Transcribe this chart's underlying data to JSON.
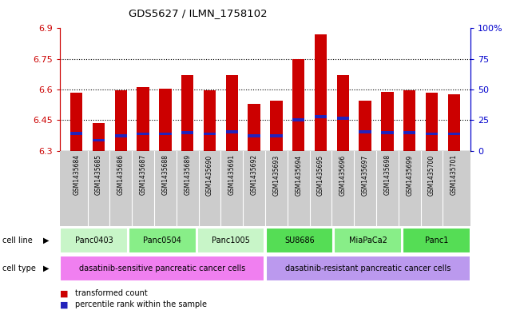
{
  "title": "GDS5627 / ILMN_1758102",
  "samples": [
    "GSM1435684",
    "GSM1435685",
    "GSM1435686",
    "GSM1435687",
    "GSM1435688",
    "GSM1435689",
    "GSM1435690",
    "GSM1435691",
    "GSM1435692",
    "GSM1435693",
    "GSM1435694",
    "GSM1435695",
    "GSM1435696",
    "GSM1435697",
    "GSM1435698",
    "GSM1435699",
    "GSM1435700",
    "GSM1435701"
  ],
  "transformed_counts": [
    6.585,
    6.435,
    6.595,
    6.61,
    6.605,
    6.67,
    6.595,
    6.67,
    6.53,
    6.545,
    6.75,
    6.87,
    6.67,
    6.545,
    6.59,
    6.595,
    6.585,
    6.575
  ],
  "percentile_positions": [
    6.384,
    6.352,
    6.373,
    6.383,
    6.383,
    6.388,
    6.383,
    6.393,
    6.373,
    6.373,
    6.452,
    6.468,
    6.458,
    6.393,
    6.388,
    6.388,
    6.383,
    6.383
  ],
  "y_min": 6.3,
  "y_max": 6.9,
  "y_ticks": [
    6.3,
    6.45,
    6.6,
    6.75,
    6.9
  ],
  "y_tick_labels": [
    "6.3",
    "6.45",
    "6.6",
    "6.75",
    "6.9"
  ],
  "right_y_ticks": [
    0,
    25,
    50,
    75,
    100
  ],
  "right_y_labels": [
    "0",
    "25",
    "50",
    "75",
    "100%"
  ],
  "cell_lines": [
    {
      "label": "Panc0403",
      "start": 0,
      "end": 3,
      "color": "#c8f5c8"
    },
    {
      "label": "Panc0504",
      "start": 3,
      "end": 6,
      "color": "#88ee88"
    },
    {
      "label": "Panc1005",
      "start": 6,
      "end": 9,
      "color": "#c8f5c8"
    },
    {
      "label": "SU8686",
      "start": 9,
      "end": 12,
      "color": "#55dd55"
    },
    {
      "label": "MiaPaCa2",
      "start": 12,
      "end": 15,
      "color": "#88ee88"
    },
    {
      "label": "Panc1",
      "start": 15,
      "end": 18,
      "color": "#55dd55"
    }
  ],
  "cell_types": [
    {
      "label": "dasatinib-sensitive pancreatic cancer cells",
      "start": 0,
      "end": 9,
      "color": "#f07ff0"
    },
    {
      "label": "dasatinib-resistant pancreatic cancer cells",
      "start": 9,
      "end": 18,
      "color": "#bb99ee"
    }
  ],
  "bar_color": "#cc0000",
  "blue_color": "#2222bb",
  "bar_width": 0.55,
  "left_axis_color": "#cc0000",
  "right_axis_color": "#0000cc",
  "sample_bg_color": "#cccccc",
  "legend_items": [
    {
      "color": "#cc0000",
      "label": "transformed count"
    },
    {
      "color": "#2222bb",
      "label": "percentile rank within the sample"
    }
  ]
}
